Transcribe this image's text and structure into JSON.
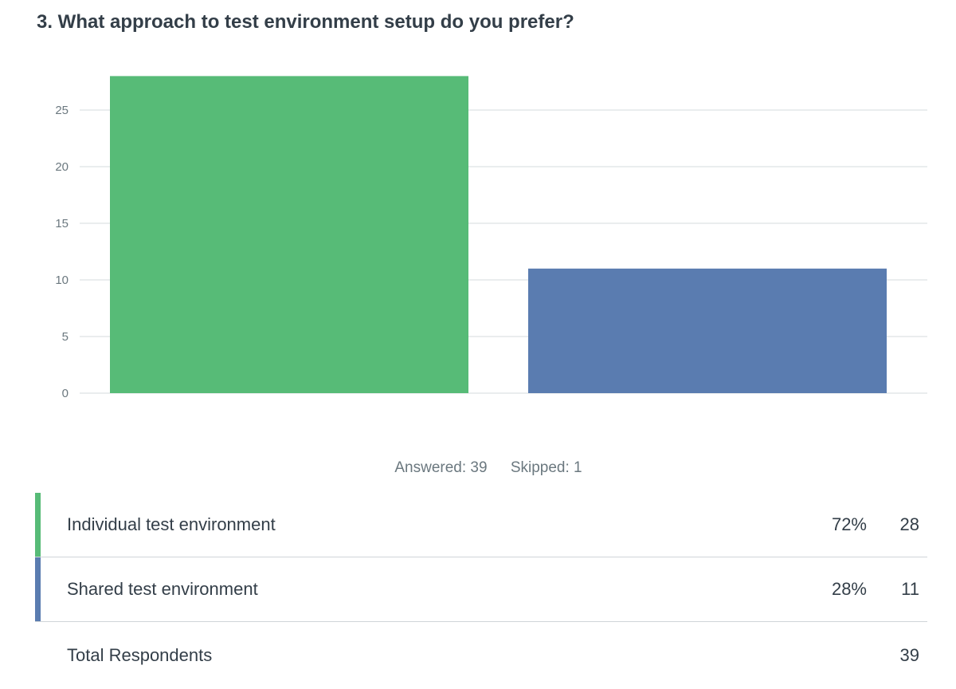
{
  "question": {
    "title": "3. What approach to test environment setup do you prefer?"
  },
  "stats": {
    "answered": "Answered: 39",
    "skipped": "Skipped: 1"
  },
  "table": {
    "rows": [
      {
        "label": "Individual test environment",
        "percent": "72%",
        "count": "28",
        "color": "#57bb77"
      },
      {
        "label": "Shared test environment",
        "percent": "28%",
        "count": "11",
        "color": "#5a7cb0"
      }
    ],
    "total": {
      "label": "Total Respondents",
      "count": "39"
    }
  },
  "chart_data": {
    "type": "bar",
    "categories": [
      "Individual test environment",
      "Shared test environment"
    ],
    "values": [
      28,
      11
    ],
    "colors": [
      "#57bb77",
      "#5a7cb0"
    ],
    "yticks": [
      0,
      5,
      10,
      15,
      20,
      25
    ],
    "ylim": [
      0,
      28
    ],
    "grid": true,
    "title": "",
    "xlabel": "",
    "ylabel": ""
  }
}
